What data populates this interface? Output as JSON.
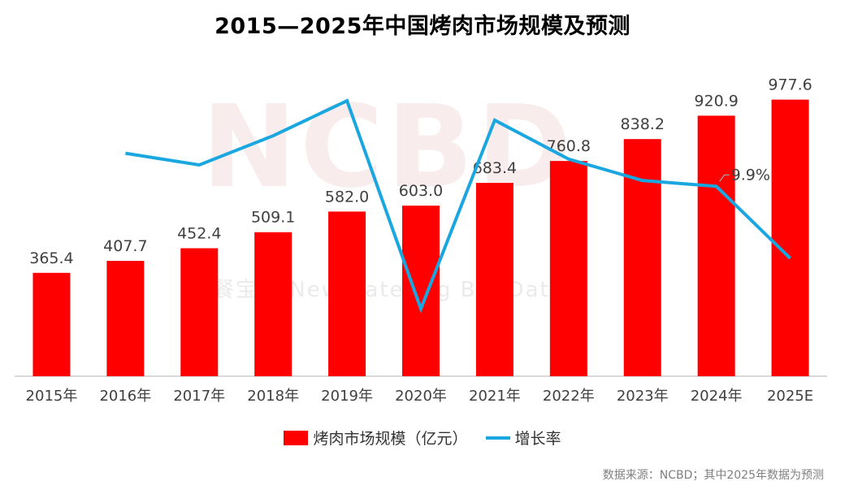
{
  "title": "2015—2025年中国烤肉市场规模及预测",
  "watermark": {
    "logo": "NCBD",
    "text": "餐宝典  New Catering Big Data"
  },
  "legend": {
    "bar_label": "烤肉市场规模（亿元）",
    "line_label": "增长率"
  },
  "source": "数据来源：NCBD；其中2025年数据为预测",
  "colors": {
    "bar": "#ff0000",
    "line": "#1aa7e0",
    "axis": "#d9d9d9"
  },
  "chart_data": {
    "type": "bar",
    "title": "2015—2025年中国烤肉市场规模及预测",
    "categories": [
      "2015年",
      "2016年",
      "2017年",
      "2018年",
      "2019年",
      "2020年",
      "2021年",
      "2022年",
      "2023年",
      "2024年",
      "2025E"
    ],
    "series": [
      {
        "name": "烤肉市场规模（亿元）",
        "type": "bar",
        "values": [
          365.4,
          407.7,
          452.4,
          509.1,
          582.0,
          603.0,
          683.4,
          760.8,
          838.2,
          920.9,
          977.6
        ],
        "labels": [
          "365.4",
          "407.7",
          "452.4",
          "509.1",
          "582.0",
          "603.0",
          "683.4",
          "760.8",
          "838.2",
          "920.9",
          "977.6"
        ]
      },
      {
        "name": "增长率",
        "type": "line",
        "values": [
          null,
          11.6,
          11.0,
          12.5,
          14.3,
          3.6,
          13.3,
          11.3,
          10.2,
          9.9,
          6.2
        ],
        "labels": [
          null,
          null,
          null,
          null,
          null,
          null,
          null,
          null,
          null,
          "9.9%",
          null
        ]
      }
    ],
    "ylim": [
      0,
      1100
    ],
    "y2lim": [
      0,
      15
    ],
    "legend_position": "bottom",
    "grid": false
  }
}
